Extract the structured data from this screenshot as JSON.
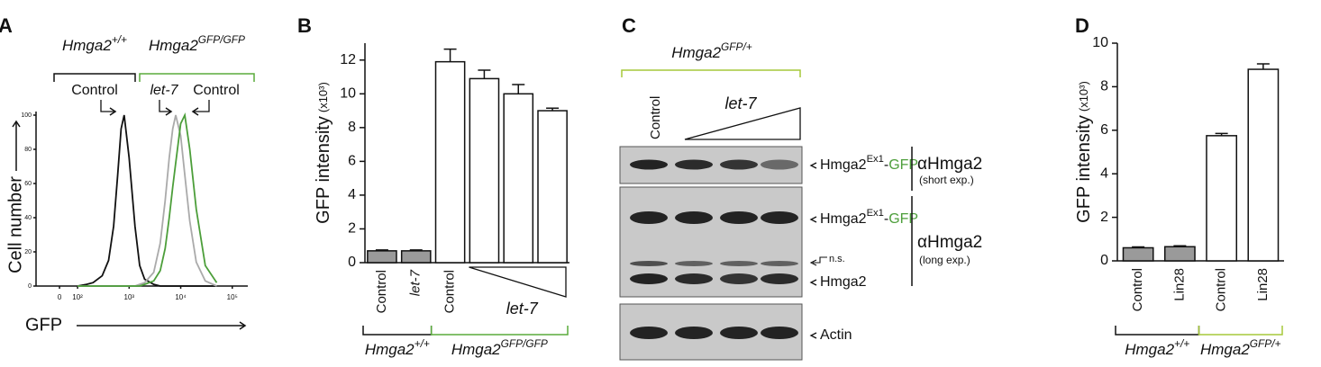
{
  "chart_data": [
    {
      "type": "line",
      "panel": "A",
      "ylabel": "Cell number",
      "xlabel": "GFP",
      "xscale": "biexponential",
      "x": [
        100,
        150,
        200,
        300,
        400,
        500,
        600,
        700,
        800,
        1000,
        1300,
        1600,
        2000,
        3000,
        4000,
        5000,
        6000,
        7000,
        8000,
        10000,
        12000,
        15000,
        20000,
        30000,
        50000
      ],
      "series": [
        {
          "color": "#111111",
          "values": [
            0,
            1,
            2,
            6,
            15,
            35,
            65,
            92,
            100,
            75,
            35,
            12,
            4,
            1,
            0,
            0,
            0,
            0,
            0,
            0,
            0,
            0,
            0,
            0,
            0
          ]
        },
        {
          "color": "#aaaaaa",
          "values": [
            0,
            0,
            0,
            0,
            0,
            0,
            0,
            0,
            0,
            0,
            0,
            1,
            2,
            8,
            25,
            50,
            75,
            92,
            100,
            88,
            65,
            38,
            14,
            3,
            0
          ]
        },
        {
          "color": "#4c9e3a",
          "values": [
            0,
            0,
            0,
            0,
            0,
            0,
            0,
            0,
            0,
            0,
            0,
            0,
            1,
            3,
            9,
            22,
            40,
            58,
            72,
            95,
            100,
            80,
            45,
            12,
            2
          ]
        }
      ],
      "xlim": [
        -130,
        200000
      ],
      "xticks": [
        0,
        {
          "value": 100,
          "label": "10²"
        },
        {
          "value": 1000,
          "label": "10³"
        },
        {
          "value": 10000,
          "label": "10⁴"
        },
        {
          "value": 100000,
          "label": "10⁵"
        }
      ],
      "ylim": [
        0,
        100
      ],
      "yticks": [
        0,
        20,
        40,
        60,
        80,
        100
      ],
      "groups": [
        {
          "color": "#111111",
          "label": {
            "italic": true,
            "parts": [
              {
                "t": "Hmga2"
              },
              {
                "t": "+/+",
                "sup": true
              }
            ]
          }
        },
        {
          "color": "#5aab3c",
          "label": {
            "italic": true,
            "parts": [
              {
                "t": "Hmga2"
              },
              {
                "t": "GFP/GFP",
                "sup": true
              }
            ]
          }
        }
      ],
      "annotations": [
        {
          "text": "Control",
          "italic": false
        },
        {
          "text": "let-7",
          "italic": true
        },
        {
          "text": "Control",
          "italic": false
        }
      ]
    },
    {
      "type": "bar",
      "panel": "B",
      "ylabel": "GFP intensity",
      "ylabel_unit": "(x10³)",
      "categories": [
        "Control",
        "let-7",
        "Control",
        null,
        null,
        null
      ],
      "italic_categories": [
        1
      ],
      "values": [
        0.7,
        0.7,
        11.9,
        10.9,
        10.0,
        9.0
      ],
      "errors": [
        0.05,
        0.05,
        0.75,
        0.5,
        0.55,
        0.15
      ],
      "colors": [
        "#9a9a9a",
        "#9a9a9a",
        "#ffffff",
        "#ffffff",
        "#ffffff",
        "#ffffff"
      ],
      "ylim": [
        0,
        13
      ],
      "yticks": [
        0,
        2,
        4,
        6,
        8,
        10,
        12
      ],
      "ramp": {
        "label": "let-7",
        "span": [
          3,
          5
        ]
      },
      "groups": [
        {
          "color": "#111111",
          "span": [
            0,
            1
          ],
          "label": {
            "italic": true,
            "parts": [
              {
                "t": "Hmga2"
              },
              {
                "t": "+/+",
                "sup": true
              }
            ]
          }
        },
        {
          "color": "#5aab3c",
          "span": [
            2,
            5
          ],
          "label": {
            "italic": true,
            "parts": [
              {
                "t": "Hmga2"
              },
              {
                "t": "GFP/GFP",
                "sup": true
              }
            ]
          }
        }
      ]
    },
    {
      "type": "bar",
      "panel": "D",
      "ylabel": "GFP intensity",
      "ylabel_unit": "(x10³)",
      "categories": [
        "Control",
        "Lin28",
        "Control",
        "Lin28"
      ],
      "italic_categories": [],
      "values": [
        0.6,
        0.65,
        5.75,
        8.8
      ],
      "errors": [
        0.04,
        0.04,
        0.1,
        0.25
      ],
      "colors": [
        "#9a9a9a",
        "#9a9a9a",
        "#ffffff",
        "#ffffff"
      ],
      "ylim": [
        0,
        10
      ],
      "yticks": [
        0,
        2,
        4,
        6,
        8,
        10
      ],
      "groups": [
        {
          "color": "#111111",
          "span": [
            0,
            1
          ],
          "label": {
            "italic": true,
            "parts": [
              {
                "t": "Hmga2"
              },
              {
                "t": "+/+",
                "sup": true
              }
            ]
          }
        },
        {
          "color": "#a6c83a",
          "span": [
            2,
            3
          ],
          "label": {
            "italic": true,
            "parts": [
              {
                "t": "Hmga2"
              },
              {
                "t": "GFP/+",
                "sup": true
              }
            ]
          }
        }
      ]
    }
  ],
  "panel_c": {
    "panel": "C",
    "bracket_color": "#a6c83a",
    "title": {
      "italic": true,
      "parts": [
        {
          "t": "Hmga2"
        },
        {
          "t": "GFP/+",
          "sup": true
        }
      ]
    },
    "lane_label": "Control",
    "ramp_label": "let-7",
    "bands": [
      {
        "parts": [
          {
            "t": "Hmga2"
          },
          {
            "t": "Ex1",
            "sup": true
          },
          {
            "t": "-"
          },
          {
            "t": "GFP",
            "color": "#4c9e3a"
          }
        ]
      },
      {
        "parts": [
          {
            "t": "Hmga2"
          },
          {
            "t": "Ex1",
            "sup": true
          },
          {
            "t": "-"
          },
          {
            "t": "GFP",
            "color": "#4c9e3a"
          }
        ]
      },
      {
        "parts": [
          {
            "t": "Hmga2"
          }
        ]
      },
      {
        "parts": [
          {
            "t": "Actin"
          }
        ]
      }
    ],
    "ns": "n.s.",
    "antibodies": [
      {
        "name": "αHmga2",
        "note": "(short exp.)"
      },
      {
        "name": "αHmga2",
        "note": "(long exp.)"
      }
    ]
  }
}
